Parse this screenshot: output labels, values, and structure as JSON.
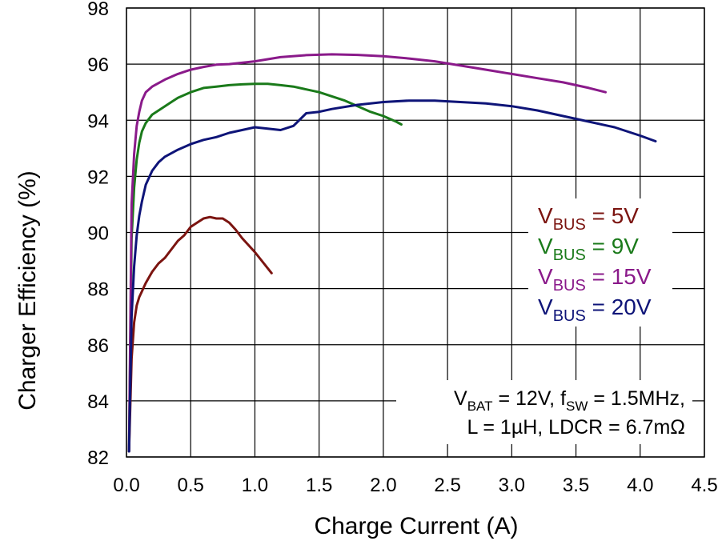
{
  "chart_data": {
    "type": "line",
    "xlabel": "Charge Current (A)",
    "ylabel": "Charger Efficiency (%)",
    "xlim": [
      0,
      4.5
    ],
    "ylim": [
      82,
      98
    ],
    "xticks": [
      "0.0",
      "0.5",
      "1.0",
      "1.5",
      "2.0",
      "2.5",
      "3.0",
      "3.5",
      "4.0",
      "4.5"
    ],
    "yticks": [
      "82",
      "84",
      "86",
      "88",
      "90",
      "92",
      "94",
      "96",
      "98"
    ],
    "grid": true,
    "legend_position": "right",
    "series": [
      {
        "label": {
          "main": "V",
          "sub": "BUS",
          "rest": " = 5V"
        },
        "color": "#7b1410",
        "x": [
          0.02,
          0.04,
          0.06,
          0.08,
          0.1,
          0.12,
          0.15,
          0.2,
          0.25,
          0.3,
          0.35,
          0.4,
          0.45,
          0.5,
          0.55,
          0.6,
          0.65,
          0.7,
          0.75,
          0.8,
          0.85,
          0.9,
          1.0,
          1.13
        ],
        "y": [
          82.2,
          85.5,
          86.8,
          87.4,
          87.7,
          87.9,
          88.2,
          88.6,
          88.9,
          89.1,
          89.4,
          89.7,
          89.9,
          90.2,
          90.35,
          90.5,
          90.55,
          90.5,
          90.5,
          90.35,
          90.1,
          89.8,
          89.3,
          88.55
        ]
      },
      {
        "label": {
          "main": "V",
          "sub": "BUS",
          "rest": " = 9V"
        },
        "color": "#1a7a1a",
        "x": [
          0.02,
          0.04,
          0.06,
          0.08,
          0.1,
          0.12,
          0.15,
          0.2,
          0.3,
          0.4,
          0.5,
          0.6,
          0.7,
          0.8,
          0.9,
          1.0,
          1.1,
          1.2,
          1.3,
          1.4,
          1.5,
          1.6,
          1.7,
          1.8,
          1.9,
          2.0,
          2.1,
          2.14
        ],
        "y": [
          82.2,
          89.8,
          91.6,
          92.6,
          93.2,
          93.6,
          93.9,
          94.2,
          94.5,
          94.8,
          95.0,
          95.15,
          95.2,
          95.25,
          95.28,
          95.3,
          95.3,
          95.25,
          95.2,
          95.1,
          95.0,
          94.85,
          94.7,
          94.5,
          94.3,
          94.15,
          93.95,
          93.85
        ]
      },
      {
        "label": {
          "main": "V",
          "sub": "BUS",
          "rest": " = 15V"
        },
        "color": "#8a1a8a",
        "x": [
          0.02,
          0.04,
          0.06,
          0.08,
          0.1,
          0.12,
          0.15,
          0.2,
          0.3,
          0.4,
          0.5,
          0.6,
          0.7,
          0.8,
          0.9,
          1.0,
          1.2,
          1.4,
          1.6,
          1.8,
          2.0,
          2.2,
          2.4,
          2.6,
          2.8,
          3.0,
          3.2,
          3.4,
          3.6,
          3.73
        ],
        "y": [
          82.2,
          91.0,
          92.8,
          93.8,
          94.3,
          94.7,
          95.0,
          95.2,
          95.45,
          95.65,
          95.8,
          95.9,
          95.98,
          96.0,
          96.05,
          96.1,
          96.25,
          96.32,
          96.35,
          96.33,
          96.28,
          96.2,
          96.1,
          95.95,
          95.8,
          95.65,
          95.5,
          95.35,
          95.15,
          95.0
        ]
      },
      {
        "label": {
          "main": "V",
          "sub": "BUS",
          "rest": " = 20V"
        },
        "color": "#0e1478",
        "x": [
          0.02,
          0.04,
          0.06,
          0.08,
          0.1,
          0.12,
          0.15,
          0.2,
          0.25,
          0.3,
          0.4,
          0.5,
          0.6,
          0.7,
          0.8,
          0.9,
          1.0,
          1.1,
          1.2,
          1.3,
          1.4,
          1.5,
          1.6,
          1.8,
          2.0,
          2.2,
          2.4,
          2.6,
          2.8,
          3.0,
          3.2,
          3.4,
          3.6,
          3.8,
          4.0,
          4.12
        ],
        "y": [
          82.2,
          87.0,
          88.8,
          89.9,
          90.6,
          91.1,
          91.7,
          92.2,
          92.5,
          92.7,
          92.95,
          93.15,
          93.3,
          93.4,
          93.55,
          93.65,
          93.75,
          93.7,
          93.65,
          93.8,
          94.25,
          94.3,
          94.4,
          94.55,
          94.65,
          94.7,
          94.7,
          94.65,
          94.6,
          94.5,
          94.35,
          94.15,
          93.95,
          93.75,
          93.45,
          93.25
        ]
      }
    ],
    "annotation": {
      "line1": {
        "main": "V",
        "sub": "BAT",
        "mid": " = 12V, f",
        "sub2": "SW",
        "rest": " = 1.5MHz,"
      },
      "line2": "L = 1µH, LDCR = 6.7mΩ"
    }
  }
}
